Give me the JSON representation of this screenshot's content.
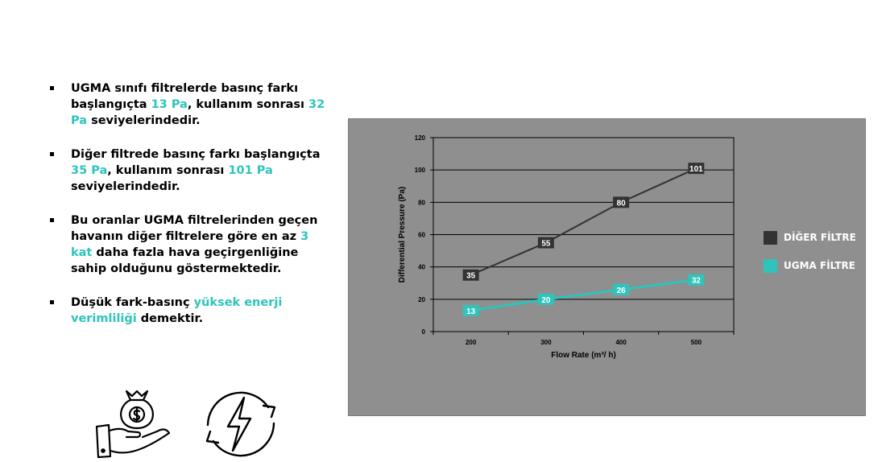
{
  "bullets": [
    {
      "parts": [
        "UGMA sınıfı filtrelerde basınç farkı başlangıçta ",
        "13 Pa",
        ", kullanım sonrası ",
        "32 Pa",
        " seviyelerindedir."
      ]
    },
    {
      "parts": [
        "Diğer filtrede basınç farkı başlangıçta ",
        "35 Pa",
        ", kullanım sonrası ",
        "101 Pa",
        " seviyelerindedir."
      ]
    },
    {
      "parts": [
        "Bu oranlar UGMA filtrelerinden geçen havanın diğer filtrelere göre en az ",
        "3 kat",
        " daha fazla hava geçirgenliğine sahip olduğunu göstermektedir."
      ]
    },
    {
      "parts": [
        "Düşük fark-basınç ",
        "yüksek enerji verimliliği",
        " demektir."
      ]
    }
  ],
  "icons": [
    "money-bag-hand-icon",
    "energy-cycle-icon"
  ],
  "colors": {
    "accent": "#2ec4bc",
    "dark_series": "#333333",
    "panel": "#8f8f8f"
  },
  "chart_data": {
    "type": "line",
    "x": [
      200,
      300,
      400,
      500
    ],
    "xlabel": "Flow Rate (m³/ h)",
    "ylabel": "Differential Pressure (Pa)",
    "ylim": [
      0,
      120
    ],
    "yticks": [
      0,
      20,
      40,
      60,
      80,
      100,
      120
    ],
    "grid": true,
    "legend_position": "right",
    "series": [
      {
        "name": "DİĞER FİLTRE",
        "values": [
          35,
          55,
          80,
          101
        ],
        "color": "#333333"
      },
      {
        "name": "UGMA FİLTRE",
        "values": [
          13,
          20,
          26,
          32
        ],
        "color": "#2ec4bc"
      }
    ]
  }
}
